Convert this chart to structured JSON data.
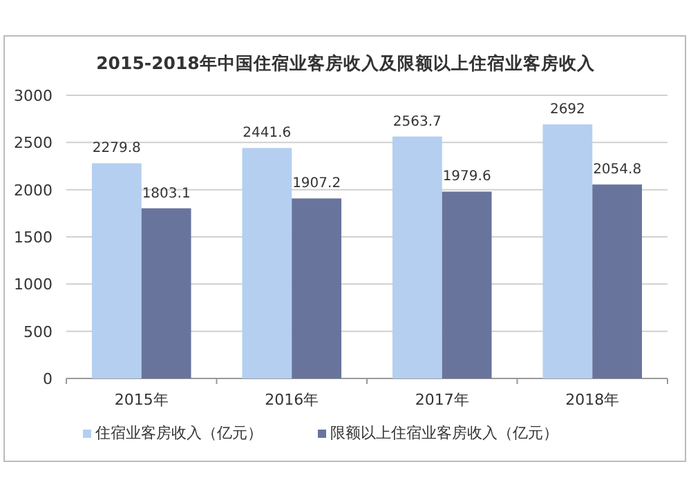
{
  "chart_data": {
    "type": "bar",
    "title": "2015-2018年中国住宿业客房收入及限额以上住宿业客房收入",
    "categories": [
      "2015年",
      "2016年",
      "2017年",
      "2018年"
    ],
    "series": [
      {
        "name": "住宿业客房收入（亿元）",
        "color": "#b4cff0",
        "values": [
          2279.8,
          2441.6,
          2563.7,
          2692
        ]
      },
      {
        "name": "限额以上住宿业客房收入（亿元）",
        "color": "#68749c",
        "values": [
          1803.1,
          1907.2,
          1979.6,
          2054.8
        ]
      }
    ],
    "ylim": [
      0,
      3000
    ],
    "yticks": [
      0,
      500,
      1000,
      1500,
      2000,
      2500,
      3000
    ],
    "grid": "y",
    "legend": "bottom",
    "data_labels": true
  }
}
